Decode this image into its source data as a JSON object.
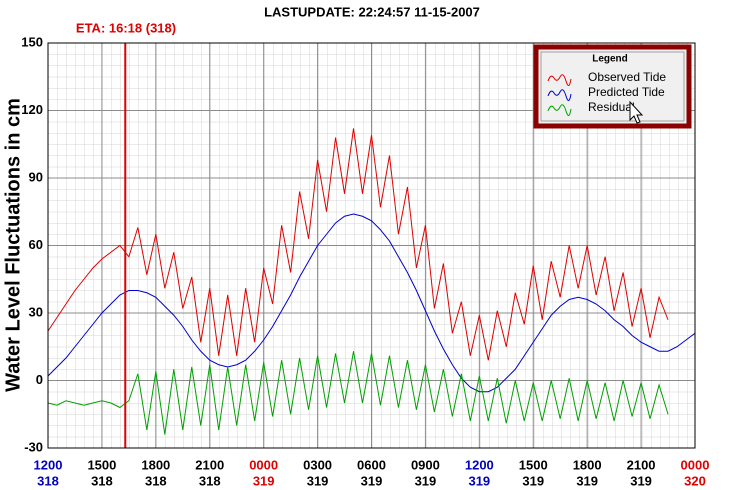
{
  "chart_data": {
    "type": "line",
    "title": "LASTUPDATE: 22:24:57  11-15-2007",
    "y_label": "Water Level Fluctuations in cm",
    "eta": {
      "label": "ETA: 16:18 (318)",
      "x": 4.3,
      "color": "#e00000"
    },
    "legend_title": "Legend",
    "legend_position": "top-right",
    "grid": true,
    "xlim": [
      0,
      36
    ],
    "ylim": [
      -30,
      150
    ],
    "yticks": [
      -30,
      0,
      30,
      60,
      90,
      120,
      150
    ],
    "xticks": [
      {
        "value": 0,
        "label": "1200"
      },
      {
        "value": 3,
        "label": "1500"
      },
      {
        "value": 6,
        "label": "1800"
      },
      {
        "value": 9,
        "label": "2100"
      },
      {
        "value": 12,
        "label": "0000"
      },
      {
        "value": 15,
        "label": "0300"
      },
      {
        "value": 18,
        "label": "0600"
      },
      {
        "value": 21,
        "label": "0900"
      },
      {
        "value": 24,
        "label": "1200"
      },
      {
        "value": 27,
        "label": "1500"
      },
      {
        "value": 30,
        "label": "1800"
      },
      {
        "value": 33,
        "label": "2100"
      },
      {
        "value": 36,
        "label": "0000"
      }
    ],
    "xtick_days": [
      "318",
      "318",
      "318",
      "318",
      "319",
      "319",
      "319",
      "319",
      "319",
      "319",
      "319",
      "319",
      "320"
    ],
    "xtick_colors": [
      "#0000c0",
      "#000000",
      "#000000",
      "#000000",
      "#e00000",
      "#000000",
      "#000000",
      "#000000",
      "#0000c0",
      "#000000",
      "#000000",
      "#000000",
      "#e00000"
    ],
    "x": [
      0,
      0.5,
      1,
      1.5,
      2,
      2.5,
      3,
      3.5,
      4,
      4.5,
      5,
      5.5,
      6,
      6.5,
      7,
      7.5,
      8,
      8.5,
      9,
      9.5,
      10,
      10.5,
      11,
      11.5,
      12,
      12.5,
      13,
      13.5,
      14,
      14.5,
      15,
      15.5,
      16,
      16.5,
      17,
      17.5,
      18,
      18.5,
      19,
      19.5,
      20,
      20.5,
      21,
      21.5,
      22,
      22.5,
      23,
      23.5,
      24,
      24.5,
      25,
      25.5,
      26,
      26.5,
      27,
      27.5,
      28,
      28.5,
      29,
      29.5,
      30,
      30.5,
      31,
      31.5,
      32,
      32.5,
      33,
      33.5,
      34,
      34.5,
      35,
      35.5,
      36
    ],
    "series": [
      {
        "name": "Observed Tide",
        "color": "#e00000",
        "values": [
          22,
          28,
          34,
          40,
          45,
          50,
          54,
          57,
          60,
          55,
          68,
          47,
          65,
          41,
          57,
          32,
          46,
          17,
          41,
          11,
          38,
          11,
          41,
          17,
          50,
          34,
          69,
          48,
          84,
          63,
          98,
          75,
          108,
          83,
          112,
          83,
          109,
          77,
          100,
          65,
          86,
          50,
          69,
          32,
          52,
          21,
          35,
          11,
          29,
          9,
          31,
          15,
          39,
          25,
          51,
          27,
          53,
          37,
          60,
          41,
          60,
          38,
          55,
          31,
          48,
          24,
          41,
          19,
          37,
          27,
          null,
          null,
          null
        ]
      },
      {
        "name": "Predicted Tide",
        "color": "#0000d0",
        "values": [
          2,
          6,
          10,
          15,
          20,
          25,
          30,
          34,
          38,
          40,
          40,
          39,
          37,
          33,
          29,
          24,
          18,
          13,
          9,
          7,
          6,
          7,
          9,
          13,
          18,
          24,
          31,
          38,
          46,
          53,
          60,
          65,
          70,
          73,
          74,
          73,
          71,
          67,
          62,
          55,
          48,
          40,
          31,
          22,
          14,
          7,
          1,
          -3,
          -5,
          -5,
          -3,
          1,
          5,
          11,
          17,
          23,
          29,
          33,
          36,
          37,
          36,
          34,
          31,
          27,
          24,
          20,
          17,
          15,
          13,
          13,
          15,
          18,
          21
        ]
      },
      {
        "name": "Residual",
        "color": "#00a000",
        "values": [
          -10,
          -11,
          -9,
          -10,
          -11,
          -10,
          -9,
          -10,
          -12,
          -9,
          3,
          -22,
          4,
          -24,
          5,
          -22,
          6,
          -20,
          7,
          -22,
          6,
          -20,
          7,
          -18,
          8,
          -16,
          9,
          -15,
          10,
          -13,
          11,
          -12,
          12,
          -10,
          13,
          -10,
          12,
          -11,
          11,
          -12,
          9,
          -13,
          7,
          -14,
          5,
          -16,
          3,
          -18,
          2,
          -18,
          1,
          -19,
          0,
          -18,
          -1,
          -18,
          0,
          -17,
          1,
          -18,
          0,
          -17,
          -1,
          -18,
          0,
          -16,
          -1,
          -17,
          -2,
          -15,
          null,
          null,
          null
        ]
      }
    ]
  }
}
